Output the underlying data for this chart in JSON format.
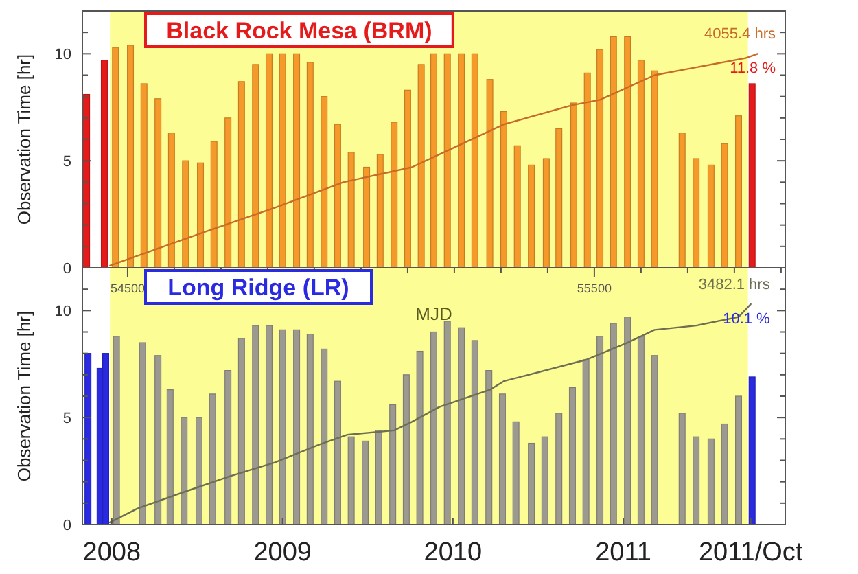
{
  "chart_data": [
    {
      "type": "bar",
      "title": "Black Rock Mesa (BRM)",
      "ylabel": "Observation Time [hr]",
      "xlim": [
        "2007-10-30",
        "2011-12-14"
      ],
      "ylim": [
        0,
        12
      ],
      "yticks": [
        0,
        {
          "value": 1,
          "label": null
        },
        {
          "value": 2,
          "label": null
        },
        {
          "value": 3,
          "label": null
        },
        {
          "value": 4,
          "label": null
        },
        5,
        {
          "value": 6,
          "label": null
        },
        {
          "value": 7,
          "label": null
        },
        {
          "value": 8,
          "label": null
        },
        {
          "value": 9,
          "label": null
        },
        10,
        {
          "value": 11,
          "label": null
        }
      ],
      "tick_labels": "y",
      "bands": [
        {
          "axis": "x",
          "from": "2007-12-28",
          "to": "2011-09-25",
          "color": "#fdfd96"
        }
      ],
      "annotations": [
        {
          "text": "4055.4 hrs",
          "x": "2011-10-16",
          "y": 10.0
        },
        {
          "text": "11.8 %",
          "x": "2011-10-16",
          "y": 10.0
        }
      ],
      "series": [
        {
          "x": [
            "2007-11-08",
            "2007-12-16",
            "2008-01-09",
            "2008-02-10",
            "2008-03-10",
            "2008-04-09",
            "2008-05-08",
            "2008-06-07",
            "2008-07-09",
            "2008-08-07",
            "2008-09-06",
            "2008-10-05",
            "2008-11-04",
            "2008-12-03",
            "2009-01-01",
            "2009-01-31",
            "2009-03-01",
            "2009-03-31",
            "2009-04-29",
            "2009-05-28",
            "2009-06-30",
            "2009-07-29",
            "2009-08-28",
            "2009-09-26",
            "2009-10-25",
            "2009-11-21",
            "2009-12-20",
            "2010-01-19",
            "2010-02-17",
            "2010-03-21",
            "2010-04-20",
            "2010-05-19",
            "2010-06-18",
            "2010-07-20",
            "2010-08-16",
            "2010-09-17",
            "2010-10-16",
            "2010-11-12",
            "2010-12-11",
            "2011-01-10",
            "2011-02-08",
            "2011-03-09",
            "2011-05-07",
            "2011-06-06",
            "2011-07-08",
            "2011-08-06",
            "2011-09-05",
            "2011-10-04"
          ],
          "values": [
            8.1,
            9.7,
            10.3,
            10.4,
            8.6,
            7.9,
            6.3,
            5.0,
            4.9,
            5.9,
            7.0,
            8.7,
            9.5,
            10.0,
            10.0,
            10.0,
            9.6,
            8.0,
            6.7,
            5.4,
            4.7,
            5.3,
            6.8,
            8.3,
            9.5,
            10.0,
            10.0,
            10.0,
            10.0,
            8.8,
            7.3,
            5.7,
            4.8,
            5.1,
            6.5,
            7.7,
            9.1,
            10.2,
            10.8,
            10.8,
            9.7,
            9.2,
            6.3,
            5.1,
            4.8,
            5.8,
            7.1,
            8.6
          ],
          "colors": [
            "#e51a1a",
            "#e51a1a",
            "#f59a2a",
            "#f59a2a",
            "#f59a2a",
            "#f59a2a",
            "#f59a2a",
            "#f59a2a",
            "#f59a2a",
            "#f59a2a",
            "#f59a2a",
            "#f59a2a",
            "#f59a2a",
            "#f59a2a",
            "#f59a2a",
            "#f59a2a",
            "#f59a2a",
            "#f59a2a",
            "#f59a2a",
            "#f59a2a",
            "#f59a2a",
            "#f59a2a",
            "#f59a2a",
            "#f59a2a",
            "#f59a2a",
            "#f59a2a",
            "#f59a2a",
            "#f59a2a",
            "#f59a2a",
            "#f59a2a",
            "#f59a2a",
            "#f59a2a",
            "#f59a2a",
            "#f59a2a",
            "#f59a2a",
            "#f59a2a",
            "#f59a2a",
            "#f59a2a",
            "#f59a2a",
            "#f59a2a",
            "#f59a2a",
            "#f59a2a",
            "#f59a2a",
            "#f59a2a",
            "#f59a2a",
            "#f59a2a",
            "#f59a2a",
            "#e51a1a"
          ]
        },
        {
          "type": "line",
          "color": "#c86a28",
          "x": [
            "2007-12-28",
            "2008-07-21",
            "2008-12-15",
            "2009-05-11",
            "2009-10-05",
            "2009-12-03",
            "2010-04-20",
            "2010-09-14",
            "2010-11-12",
            "2011-03-09",
            "2011-09-20",
            "2011-10-16"
          ],
          "values": [
            0.1,
            1.7,
            2.8,
            4.0,
            4.7,
            5.3,
            6.7,
            7.6,
            7.85,
            9.0,
            9.8,
            10.0
          ]
        }
      ]
    },
    {
      "type": "bar",
      "title": "Long Ridge (LR)",
      "ylabel": "Observation Time [hr]",
      "xlim": [
        "2007-10-30",
        "2011-12-14"
      ],
      "ylim": [
        0,
        12
      ],
      "yticks": [
        0,
        {
          "value": 1,
          "label": null
        },
        {
          "value": 2,
          "label": null
        },
        {
          "value": 3,
          "label": null
        },
        {
          "value": 4,
          "label": null
        },
        5,
        {
          "value": 6,
          "label": null
        },
        {
          "value": 7,
          "label": null
        },
        {
          "value": 8,
          "label": null
        },
        {
          "value": 9,
          "label": null
        },
        10,
        {
          "value": 11,
          "label": null
        }
      ],
      "xticks": [
        {
          "value": "2008",
          "label": "2008"
        },
        {
          "value": "2009",
          "label": "2009"
        },
        {
          "value": "2010",
          "label": "2010"
        },
        {
          "value": "2011",
          "label": "2011"
        },
        {
          "value": "2011-10",
          "label": "2011/Oct"
        }
      ],
      "x2label": "MJD",
      "x2lim": [
        54403,
        55909
      ],
      "x2ticks": [
        54500,
        {
          "value": 54600,
          "label": null
        },
        {
          "value": 54700,
          "label": null
        },
        {
          "value": 54800,
          "label": null
        },
        {
          "value": 54900,
          "label": null
        },
        {
          "value": 55000,
          "label": null
        },
        {
          "value": 55100,
          "label": null
        },
        {
          "value": 55200,
          "label": null
        },
        {
          "value": 55300,
          "label": null
        },
        {
          "value": 55400,
          "label": null
        },
        55500,
        {
          "value": 55600,
          "label": null
        },
        {
          "value": 55700,
          "label": null
        },
        {
          "value": 55800,
          "label": null
        },
        {
          "value": 55900,
          "label": null
        }
      ],
      "bands": [
        {
          "axis": "x",
          "from": "2007-12-28",
          "to": "2011-09-25",
          "color": "#fdfd96"
        }
      ],
      "annotations": [
        {
          "text": "3482.1 hrs",
          "x": "2011-10-01",
          "y": 10.3
        },
        {
          "text": "10.1 %",
          "x": "2011-10-01",
          "y": 10.3
        }
      ],
      "series": [
        {
          "x": [
            "2007-11-11",
            "2007-12-07",
            "2007-12-19",
            "2008-01-11",
            "2008-03-07",
            "2008-04-09",
            "2008-05-05",
            "2008-06-04",
            "2008-07-06",
            "2008-08-04",
            "2008-09-06",
            "2008-10-05",
            "2008-11-04",
            "2008-12-03",
            "2009-01-01",
            "2009-01-31",
            "2009-03-01",
            "2009-03-31",
            "2009-04-29",
            "2009-05-28",
            "2009-06-27",
            "2009-07-26",
            "2009-08-25",
            "2009-09-23",
            "2009-10-22",
            "2009-11-21",
            "2009-12-20",
            "2010-01-19",
            "2010-02-17",
            "2010-03-19",
            "2010-04-17",
            "2010-05-16",
            "2010-06-18",
            "2010-07-17",
            "2010-08-16",
            "2010-09-14",
            "2010-10-13",
            "2010-11-12",
            "2010-12-11",
            "2011-01-10",
            "2011-02-08",
            "2011-03-09",
            "2011-05-07",
            "2011-06-06",
            "2011-07-08",
            "2011-08-06",
            "2011-09-05",
            "2011-10-04"
          ],
          "values": [
            8.0,
            7.3,
            8.0,
            8.8,
            8.5,
            7.9,
            6.3,
            5.0,
            5.0,
            6.1,
            7.2,
            8.7,
            9.3,
            9.3,
            9.1,
            9.1,
            8.9,
            8.2,
            6.7,
            4.1,
            3.9,
            4.4,
            5.6,
            7.0,
            8.1,
            9.0,
            9.5,
            9.2,
            8.6,
            7.2,
            6.1,
            4.8,
            3.8,
            4.1,
            5.2,
            6.4,
            7.7,
            8.8,
            9.4,
            9.7,
            8.8,
            7.9,
            5.2,
            4.1,
            4.0,
            4.7,
            6.0,
            6.9
          ],
          "colors": [
            "#2a2ae0",
            "#2a2ae0",
            "#2a2ae0",
            "#9c9a90",
            "#9c9a90",
            "#9c9a90",
            "#9c9a90",
            "#9c9a90",
            "#9c9a90",
            "#9c9a90",
            "#9c9a90",
            "#9c9a90",
            "#9c9a90",
            "#9c9a90",
            "#9c9a90",
            "#9c9a90",
            "#9c9a90",
            "#9c9a90",
            "#9c9a90",
            "#9c9a90",
            "#9c9a90",
            "#9c9a90",
            "#9c9a90",
            "#9c9a90",
            "#9c9a90",
            "#9c9a90",
            "#9c9a90",
            "#9c9a90",
            "#9c9a90",
            "#9c9a90",
            "#9c9a90",
            "#9c9a90",
            "#9c9a90",
            "#9c9a90",
            "#9c9a90",
            "#9c9a90",
            "#9c9a90",
            "#9c9a90",
            "#9c9a90",
            "#9c9a90",
            "#9c9a90",
            "#9c9a90",
            "#9c9a90",
            "#9c9a90",
            "#9c9a90",
            "#9c9a90",
            "#9c9a90",
            "#2a2ae0"
          ]
        },
        {
          "type": "line",
          "color": "#6e6e52",
          "x": [
            "2007-12-28",
            "2008-02-25",
            "2008-06-01",
            "2008-09-09",
            "2008-12-15",
            "2009-03-22",
            "2009-05-20",
            "2009-08-28",
            "2009-10-05",
            "2009-12-03",
            "2010-03-21",
            "2010-04-20",
            "2010-10-13",
            "2011-01-10",
            "2011-03-09",
            "2011-06-06",
            "2011-09-05",
            "2011-10-01"
          ],
          "values": [
            0.1,
            0.75,
            1.5,
            2.25,
            2.9,
            3.75,
            4.2,
            4.4,
            4.8,
            5.5,
            6.3,
            6.7,
            7.7,
            8.5,
            9.1,
            9.3,
            9.7,
            10.3
          ]
        }
      ]
    }
  ]
}
